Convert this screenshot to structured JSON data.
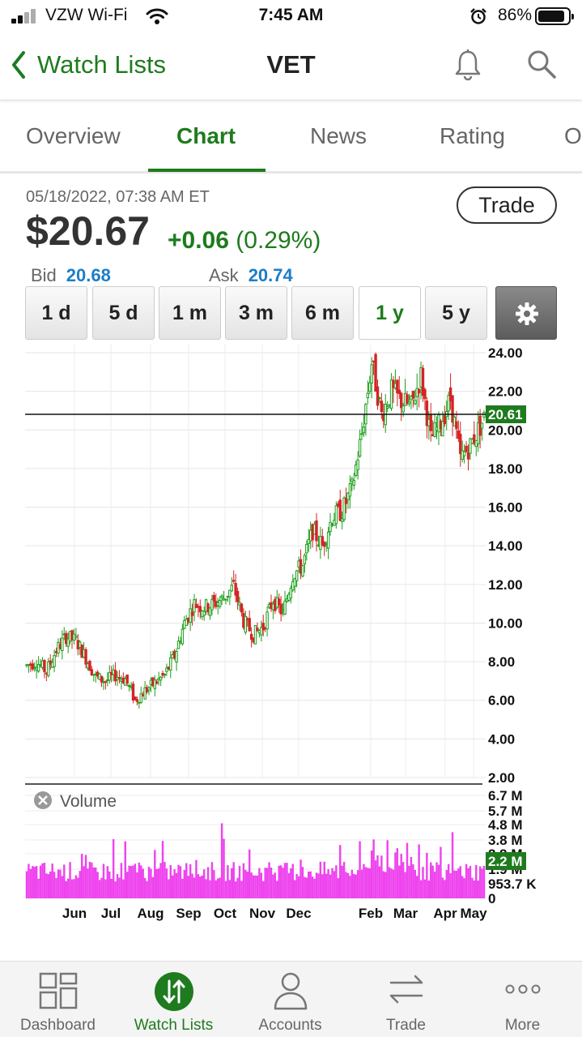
{
  "status_bar": {
    "carrier": "VZW Wi-Fi",
    "time": "7:45 AM",
    "battery": "86%"
  },
  "nav": {
    "back_label": "Watch Lists",
    "title": "VET"
  },
  "tabs": [
    {
      "label": "Overview",
      "active": false
    },
    {
      "label": "Chart",
      "active": true
    },
    {
      "label": "News",
      "active": false
    },
    {
      "label": "Rating",
      "active": false
    },
    {
      "label": "O",
      "active": false
    }
  ],
  "quote": {
    "datetime": "05/18/2022, 07:38 AM ET",
    "price": "$20.67",
    "change": "+0.06",
    "change_pct": "(0.29%)",
    "bid_label": "Bid",
    "bid": "20.68",
    "ask_label": "Ask",
    "ask": "20.74",
    "trade_label": "Trade"
  },
  "ranges": [
    "1 d",
    "5 d",
    "1 m",
    "3 m",
    "6 m",
    "1 y",
    "5 y"
  ],
  "active_range": "1 y",
  "colors": {
    "accent": "#1e7b1e",
    "up": "#1a9e1a",
    "down": "#d42424",
    "volume": "#ee44ee",
    "bidask": "#1a7ec8"
  },
  "chart_data": {
    "type": "candlestick",
    "price_axis": {
      "ticks": [
        "24.00",
        "22.00",
        "20.00",
        "18.00",
        "16.00",
        "14.00",
        "12.00",
        "10.00",
        "8.00",
        "6.00",
        "4.00",
        "2.00"
      ],
      "ylim": [
        2,
        24
      ]
    },
    "last_price_line": 20.61,
    "last_price_label": "20.61",
    "x_labels": [
      "Jun",
      "Jul",
      "Aug",
      "Sep",
      "Oct",
      "Nov",
      "Dec",
      "Feb",
      "Mar",
      "Apr",
      "May"
    ],
    "price_path": [
      [
        0,
        7.8
      ],
      [
        5,
        8.0
      ],
      [
        10,
        7.5
      ],
      [
        15,
        8.6
      ],
      [
        20,
        9.3
      ],
      [
        25,
        9.1
      ],
      [
        30,
        8.2
      ],
      [
        35,
        7.2
      ],
      [
        40,
        7.0
      ],
      [
        45,
        7.3
      ],
      [
        50,
        7.1
      ],
      [
        55,
        6.0
      ],
      [
        60,
        6.5
      ],
      [
        65,
        6.9
      ],
      [
        70,
        7.3
      ],
      [
        75,
        8.3
      ],
      [
        80,
        10.0
      ],
      [
        85,
        11.0
      ],
      [
        90,
        10.8
      ],
      [
        95,
        11.0
      ],
      [
        100,
        11.3
      ],
      [
        105,
        11.9
      ],
      [
        110,
        10.1
      ],
      [
        115,
        9.4
      ],
      [
        120,
        9.8
      ],
      [
        125,
        11.2
      ],
      [
        130,
        10.5
      ],
      [
        135,
        12.5
      ],
      [
        140,
        13.0
      ],
      [
        145,
        14.8
      ],
      [
        150,
        14.0
      ],
      [
        155,
        15.5
      ],
      [
        160,
        15.8
      ],
      [
        165,
        17.0
      ],
      [
        170,
        19.8
      ],
      [
        175,
        23.5
      ],
      [
        180,
        20.8
      ],
      [
        185,
        22.0
      ],
      [
        190,
        21.5
      ],
      [
        195,
        21.2
      ],
      [
        200,
        22.8
      ],
      [
        205,
        19.5
      ],
      [
        210,
        20.4
      ],
      [
        215,
        21.6
      ],
      [
        220,
        18.5
      ],
      [
        225,
        19.2
      ],
      [
        232,
        20.6
      ]
    ],
    "volume_axis": {
      "ticks": [
        "6.7 M",
        "5.7 M",
        "4.8 M",
        "3.8 M",
        "2.9 M",
        "1.9 M",
        "953.7 K",
        "0"
      ],
      "ylim": [
        0,
        6.7
      ]
    },
    "last_volume_label": "2.2 M",
    "volume_label": "Volume"
  },
  "tabbar": [
    {
      "label": "Dashboard",
      "icon": "dashboard-icon",
      "active": false
    },
    {
      "label": "Watch Lists",
      "icon": "watchlists-icon",
      "active": true
    },
    {
      "label": "Accounts",
      "icon": "accounts-icon",
      "active": false
    },
    {
      "label": "Trade",
      "icon": "trade-icon",
      "active": false
    },
    {
      "label": "More",
      "icon": "more-icon",
      "active": false
    }
  ]
}
